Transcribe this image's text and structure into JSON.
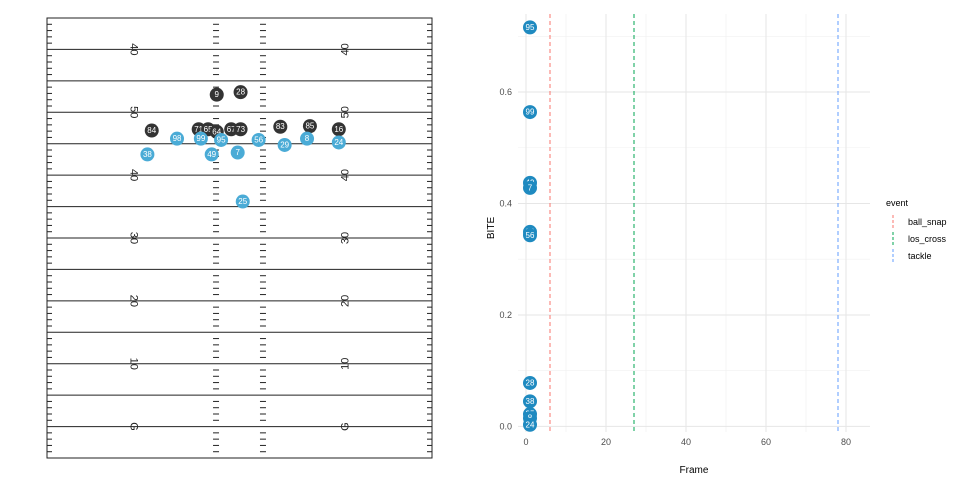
{
  "chart_data": [
    {
      "type": "scatter",
      "title": "",
      "field": {
        "yard_labels": [
          {
            "yardline": 10,
            "label": "G"
          },
          {
            "yardline": 20,
            "label": "10"
          },
          {
            "yardline": 30,
            "label": "20"
          },
          {
            "yardline": 40,
            "label": "30"
          },
          {
            "yardline": 50,
            "label": "40"
          },
          {
            "yardline": 60,
            "label": "50"
          },
          {
            "yardline": 70,
            "label": "40"
          }
        ],
        "yardline_range": [
          5,
          75
        ],
        "lateral_range": [
          0,
          53.3
        ]
      },
      "players": [
        {
          "jersey": "9",
          "team": "offense",
          "x": 62.8,
          "y": 23.5
        },
        {
          "jersey": "28",
          "team": "offense",
          "x": 63.2,
          "y": 26.8
        },
        {
          "jersey": "84",
          "team": "offense",
          "x": 57.1,
          "y": 14.5
        },
        {
          "jersey": "71",
          "team": "offense",
          "x": 57.3,
          "y": 21.0
        },
        {
          "jersey": "65",
          "team": "offense",
          "x": 57.3,
          "y": 22.3
        },
        {
          "jersey": "64",
          "team": "offense",
          "x": 56.9,
          "y": 23.5
        },
        {
          "jersey": "67",
          "team": "offense",
          "x": 57.3,
          "y": 25.5
        },
        {
          "jersey": "73",
          "team": "offense",
          "x": 57.3,
          "y": 26.8
        },
        {
          "jersey": "83",
          "team": "offense",
          "x": 57.7,
          "y": 32.3
        },
        {
          "jersey": "85",
          "team": "offense",
          "x": 57.8,
          "y": 36.4
        },
        {
          "jersey": "16",
          "team": "offense",
          "x": 57.3,
          "y": 40.4
        },
        {
          "jersey": "98",
          "team": "defense",
          "x": 55.8,
          "y": 18.0
        },
        {
          "jersey": "99",
          "team": "defense",
          "x": 55.8,
          "y": 21.3
        },
        {
          "jersey": "95",
          "team": "defense",
          "x": 55.6,
          "y": 24.1
        },
        {
          "jersey": "56",
          "team": "defense",
          "x": 55.6,
          "y": 29.3
        },
        {
          "jersey": "8",
          "team": "defense",
          "x": 55.8,
          "y": 36.0
        },
        {
          "jersey": "24",
          "team": "defense",
          "x": 55.2,
          "y": 40.4
        },
        {
          "jersey": "29",
          "team": "defense",
          "x": 54.8,
          "y": 32.9
        },
        {
          "jersey": "38",
          "team": "defense",
          "x": 53.3,
          "y": 13.9
        },
        {
          "jersey": "49",
          "team": "defense",
          "x": 53.3,
          "y": 22.8
        },
        {
          "jersey": "7",
          "team": "defense",
          "x": 53.6,
          "y": 26.4
        },
        {
          "jersey": "25",
          "team": "defense",
          "x": 45.8,
          "y": 27.1
        }
      ],
      "team_colors": {
        "offense": "#333333",
        "defense": "#4aabd6"
      }
    },
    {
      "type": "scatter",
      "title": "",
      "xlabel": "Frame",
      "ylabel": "BITE",
      "xlim": [
        -2,
        86
      ],
      "ylim": [
        -0.01,
        0.74
      ],
      "x_ticks": [
        0,
        20,
        40,
        60,
        80
      ],
      "y_ticks": [
        0.0,
        0.2,
        0.4,
        0.6
      ],
      "x_tick_labels": [
        "0",
        "20",
        "40",
        "60",
        "80"
      ],
      "y_tick_labels": [
        "0.0",
        "0.2",
        "0.4",
        "0.6"
      ],
      "points": [
        {
          "frame": 1,
          "bite": 0.716,
          "label": "95"
        },
        {
          "frame": 1,
          "bite": 0.564,
          "label": "99"
        },
        {
          "frame": 1,
          "bite": 0.437,
          "label": "49"
        },
        {
          "frame": 1,
          "bite": 0.428,
          "label": "7"
        },
        {
          "frame": 1,
          "bite": 0.349,
          "label": "98"
        },
        {
          "frame": 1,
          "bite": 0.343,
          "label": "56"
        },
        {
          "frame": 1,
          "bite": 0.078,
          "label": "28"
        },
        {
          "frame": 1,
          "bite": 0.045,
          "label": "38"
        },
        {
          "frame": 1,
          "bite": 0.022,
          "label": "25"
        },
        {
          "frame": 1,
          "bite": 0.015,
          "label": "8"
        },
        {
          "frame": 1,
          "bite": 0.003,
          "label": "24"
        }
      ],
      "point_color": "#1f8ac0",
      "events": [
        {
          "name": "ball_snap",
          "frame": 6,
          "color": "#f8766d"
        },
        {
          "name": "los_cross",
          "frame": 27,
          "color": "#00a551"
        },
        {
          "name": "tackle",
          "frame": 78,
          "color": "#619cff"
        }
      ],
      "legend_title": "event",
      "legend_position": "right"
    }
  ]
}
